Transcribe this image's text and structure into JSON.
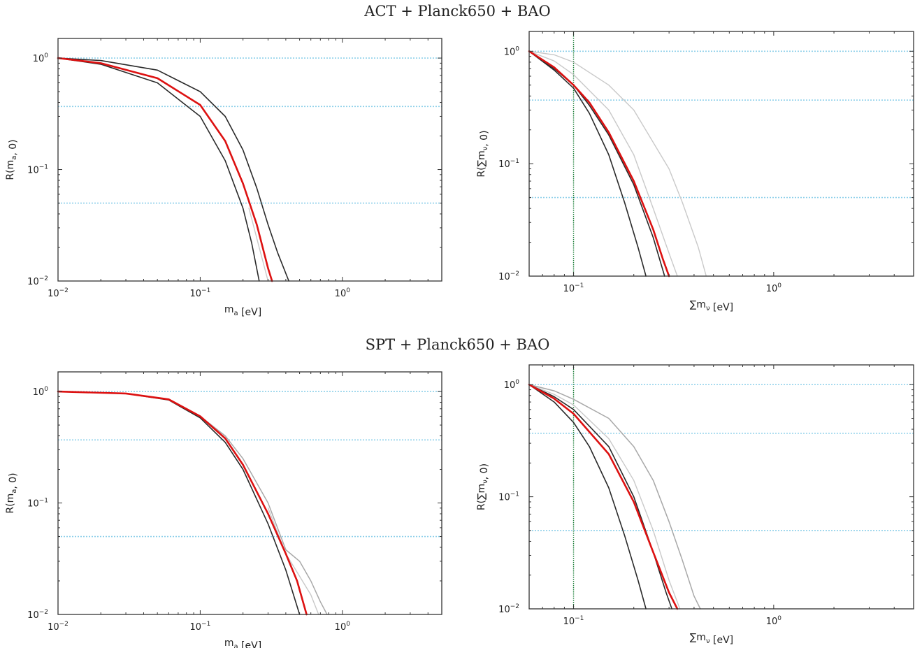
{
  "rows": [
    {
      "title": "ACT + Planck650 + BAO"
    },
    {
      "title": "SPT + Planck650 + BAO"
    }
  ],
  "colors": {
    "red": "#dd1111",
    "dark": "#2a2a2a",
    "gray": "#a8a8a8",
    "light": "#c9c9c9",
    "ref": "#8fd0ea",
    "vline": "#1e7f3a"
  },
  "chart_data": [
    {
      "type": "line",
      "row": 0,
      "col": 0,
      "title": "ACT + Planck650 + BAO",
      "xlabel": "m_a [eV]",
      "ylabel": "R(m_a, 0)",
      "xscale": "log",
      "yscale": "log",
      "xlim": [
        0.01,
        5.0
      ],
      "ylim": [
        0.01,
        1.5
      ],
      "xticks": [
        {
          "v": 0.01,
          "b": "10",
          "e": "−2"
        },
        {
          "v": 0.1,
          "b": "10",
          "e": "−1"
        },
        {
          "v": 1,
          "b": "10",
          "e": "0"
        }
      ],
      "yticks": [
        {
          "v": 0.01,
          "b": "10",
          "e": "−2"
        },
        {
          "v": 0.1,
          "b": "10",
          "e": "−1"
        },
        {
          "v": 1,
          "b": "10",
          "e": "0"
        }
      ],
      "hlines": [
        1.0,
        0.368,
        0.05
      ],
      "series": [
        {
          "style": "dark",
          "x": [
            0.01,
            0.02,
            0.05,
            0.1,
            0.15,
            0.2,
            0.25,
            0.3,
            0.35,
            0.42
          ],
          "y": [
            1.0,
            0.95,
            0.78,
            0.5,
            0.3,
            0.15,
            0.068,
            0.032,
            0.018,
            0.01
          ]
        },
        {
          "style": "red",
          "x": [
            0.01,
            0.02,
            0.05,
            0.1,
            0.15,
            0.2,
            0.25,
            0.3,
            0.32
          ],
          "y": [
            1.0,
            0.9,
            0.66,
            0.38,
            0.18,
            0.075,
            0.032,
            0.013,
            0.01
          ]
        },
        {
          "style": "dark",
          "x": [
            0.01,
            0.02,
            0.05,
            0.1,
            0.15,
            0.2,
            0.23,
            0.26
          ],
          "y": [
            1.0,
            0.88,
            0.6,
            0.3,
            0.12,
            0.045,
            0.022,
            0.01
          ]
        },
        {
          "style": "light",
          "x": [
            0.22,
            0.26,
            0.3
          ],
          "y": [
            0.045,
            0.02,
            0.01
          ]
        }
      ]
    },
    {
      "type": "line",
      "row": 0,
      "col": 1,
      "xlabel": "∑m_ν [eV]",
      "ylabel": "R(∑m_ν, 0)",
      "xscale": "log",
      "yscale": "log",
      "xlim": [
        0.06,
        5.0
      ],
      "ylim": [
        0.01,
        1.5
      ],
      "xticks": [
        {
          "v": 0.1,
          "b": "10",
          "e": "−1"
        },
        {
          "v": 1,
          "b": "10",
          "e": "0"
        }
      ],
      "yticks": [
        {
          "v": 0.01,
          "b": "10",
          "e": "−2"
        },
        {
          "v": 0.1,
          "b": "10",
          "e": "−1"
        },
        {
          "v": 1,
          "b": "10",
          "e": "0"
        }
      ],
      "hlines": [
        1.0,
        0.368,
        0.05
      ],
      "vline": 0.1,
      "series": [
        {
          "style": "light",
          "x": [
            0.06,
            0.08,
            0.1,
            0.15,
            0.2,
            0.3,
            0.35,
            0.42,
            0.46
          ],
          "y": [
            1.0,
            0.93,
            0.8,
            0.5,
            0.3,
            0.09,
            0.045,
            0.018,
            0.01
          ]
        },
        {
          "style": "light",
          "x": [
            0.06,
            0.08,
            0.1,
            0.15,
            0.2,
            0.25,
            0.3,
            0.33
          ],
          "y": [
            1.0,
            0.82,
            0.62,
            0.3,
            0.12,
            0.04,
            0.016,
            0.01
          ]
        },
        {
          "style": "red",
          "x": [
            0.06,
            0.08,
            0.1,
            0.12,
            0.15,
            0.2,
            0.25,
            0.28,
            0.3
          ],
          "y": [
            1.0,
            0.72,
            0.5,
            0.35,
            0.19,
            0.07,
            0.026,
            0.014,
            0.01
          ]
        },
        {
          "style": "dark",
          "x": [
            0.06,
            0.08,
            0.1,
            0.12,
            0.15,
            0.2,
            0.25,
            0.285
          ],
          "y": [
            1.0,
            0.7,
            0.5,
            0.33,
            0.18,
            0.065,
            0.022,
            0.01
          ]
        },
        {
          "style": "dark",
          "x": [
            0.06,
            0.08,
            0.1,
            0.12,
            0.15,
            0.18,
            0.21,
            0.23
          ],
          "y": [
            1.0,
            0.68,
            0.47,
            0.28,
            0.12,
            0.045,
            0.018,
            0.01
          ]
        }
      ]
    },
    {
      "type": "line",
      "row": 1,
      "col": 0,
      "title": "SPT + Planck650 + BAO",
      "xlabel": "m_a [eV]",
      "ylabel": "R(m_a, 0)",
      "xscale": "log",
      "yscale": "log",
      "xlim": [
        0.01,
        5.0
      ],
      "ylim": [
        0.01,
        1.5
      ],
      "xticks": [
        {
          "v": 0.01,
          "b": "10",
          "e": "−2"
        },
        {
          "v": 0.1,
          "b": "10",
          "e": "−1"
        },
        {
          "v": 1,
          "b": "10",
          "e": "0"
        }
      ],
      "yticks": [
        {
          "v": 0.01,
          "b": "10",
          "e": "−2"
        },
        {
          "v": 0.1,
          "b": "10",
          "e": "−1"
        },
        {
          "v": 1,
          "b": "10",
          "e": "0"
        }
      ],
      "hlines": [
        1.0,
        0.368,
        0.05
      ],
      "series": [
        {
          "style": "gray",
          "x": [
            0.01,
            0.03,
            0.06,
            0.1,
            0.15,
            0.2,
            0.3,
            0.4,
            0.5,
            0.6,
            0.7,
            0.78
          ],
          "y": [
            1.0,
            0.96,
            0.85,
            0.6,
            0.4,
            0.25,
            0.1,
            0.038,
            0.03,
            0.02,
            0.013,
            0.01
          ]
        },
        {
          "style": "light",
          "x": [
            0.3,
            0.4,
            0.5,
            0.6,
            0.68
          ],
          "y": [
            0.09,
            0.035,
            0.022,
            0.015,
            0.01
          ]
        },
        {
          "style": "red",
          "x": [
            0.01,
            0.03,
            0.06,
            0.1,
            0.15,
            0.2,
            0.3,
            0.4,
            0.48,
            0.56
          ],
          "y": [
            1.0,
            0.96,
            0.85,
            0.6,
            0.38,
            0.22,
            0.08,
            0.035,
            0.02,
            0.01
          ]
        },
        {
          "style": "dark",
          "x": [
            0.01,
            0.03,
            0.06,
            0.1,
            0.15,
            0.2,
            0.3,
            0.4,
            0.5
          ],
          "y": [
            1.0,
            0.96,
            0.84,
            0.58,
            0.35,
            0.2,
            0.065,
            0.025,
            0.01
          ]
        }
      ]
    },
    {
      "type": "line",
      "row": 1,
      "col": 1,
      "xlabel": "∑m_ν [eV]",
      "ylabel": "R(∑m_ν, 0)",
      "xscale": "log",
      "yscale": "log",
      "xlim": [
        0.06,
        5.0
      ],
      "ylim": [
        0.01,
        1.5
      ],
      "xticks": [
        {
          "v": 0.1,
          "b": "10",
          "e": "−1"
        },
        {
          "v": 1,
          "b": "10",
          "e": "0"
        }
      ],
      "yticks": [
        {
          "v": 0.01,
          "b": "10",
          "e": "−2"
        },
        {
          "v": 0.1,
          "b": "10",
          "e": "−1"
        },
        {
          "v": 1,
          "b": "10",
          "e": "0"
        }
      ],
      "hlines": [
        1.0,
        0.368,
        0.05
      ],
      "vline": 0.1,
      "series": [
        {
          "style": "gray",
          "x": [
            0.06,
            0.08,
            0.1,
            0.15,
            0.2,
            0.25,
            0.3,
            0.35,
            0.4,
            0.43
          ],
          "y": [
            1.0,
            0.88,
            0.74,
            0.5,
            0.28,
            0.14,
            0.06,
            0.027,
            0.013,
            0.01
          ]
        },
        {
          "style": "light",
          "x": [
            0.06,
            0.08,
            0.1,
            0.15,
            0.2,
            0.25,
            0.3,
            0.34
          ],
          "y": [
            1.0,
            0.82,
            0.66,
            0.33,
            0.14,
            0.05,
            0.018,
            0.01
          ]
        },
        {
          "style": "dark",
          "x": [
            0.06,
            0.08,
            0.1,
            0.15,
            0.2,
            0.25,
            0.29,
            0.31
          ],
          "y": [
            1.0,
            0.78,
            0.6,
            0.28,
            0.1,
            0.032,
            0.014,
            0.01
          ]
        },
        {
          "style": "red",
          "x": [
            0.06,
            0.08,
            0.1,
            0.15,
            0.2,
            0.25,
            0.3,
            0.33
          ],
          "y": [
            1.0,
            0.75,
            0.55,
            0.24,
            0.09,
            0.032,
            0.014,
            0.01
          ]
        },
        {
          "style": "dark",
          "x": [
            0.06,
            0.08,
            0.1,
            0.12,
            0.15,
            0.18,
            0.21,
            0.23
          ],
          "y": [
            1.0,
            0.7,
            0.46,
            0.28,
            0.12,
            0.045,
            0.018,
            0.01
          ]
        }
      ]
    }
  ]
}
